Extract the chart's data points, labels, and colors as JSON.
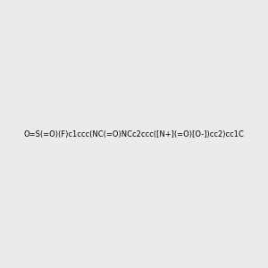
{
  "smiles": "O=S(=O)(F)c1ccc(NC(=O)NCc2ccc([N+](=O)[O-])cc2)cc1C",
  "background_color": "#ebebeb",
  "fig_size": [
    3.0,
    3.0
  ],
  "dpi": 100,
  "atom_colors": {
    "F": "#ff00ff",
    "S": "#cccc00",
    "O": "#ff0000",
    "N": "#0000ff",
    "C": "#000000",
    "H": "#404040"
  },
  "title": ""
}
